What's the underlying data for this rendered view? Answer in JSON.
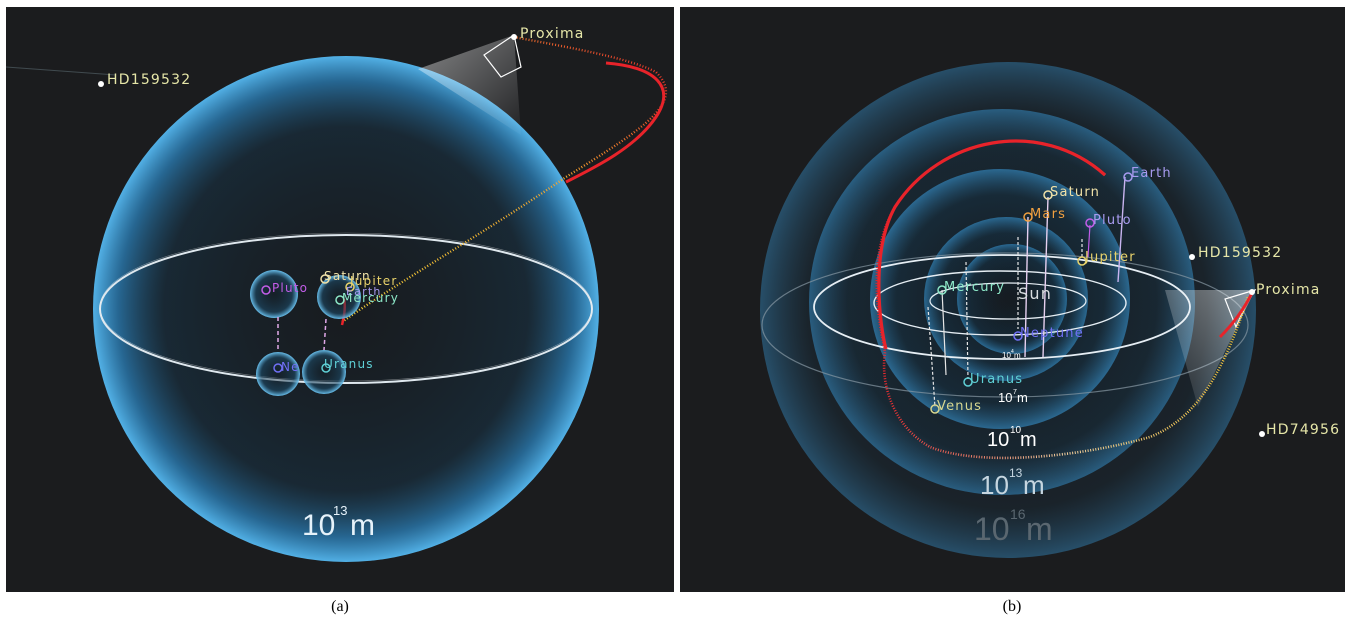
{
  "captions": {
    "a": "(a)",
    "b": "(b)"
  },
  "panel_a": {
    "star_1": "HD159532",
    "star_2": "Proxima",
    "planets": {
      "pluto": "Pluto",
      "saturn": "Saturn",
      "jupiter": "Jupiter",
      "earth": "Earth",
      "mercury": "Mercury",
      "neptune": "Ne",
      "uranus": "Uranus"
    },
    "scale": {
      "base": "10",
      "exp": "13",
      "unit": "m"
    }
  },
  "panel_b": {
    "stars": {
      "hd159532": "HD159532",
      "proxima": "Proxima",
      "hd74956": "HD74956"
    },
    "planets": {
      "earth": "Earth",
      "saturn": "Saturn",
      "mars": "Mars",
      "pluto": "Pluto",
      "jupiter": "Jupiter",
      "mercury": "Mercury",
      "sun": "Sun",
      "neptune": "Neptune",
      "uranus": "Uranus",
      "venus": "Venus"
    },
    "scales": {
      "s4": {
        "base": "10",
        "exp": "4",
        "unit": "m"
      },
      "s7": {
        "base": "10",
        "exp": "7",
        "unit": "m"
      },
      "s10": {
        "base": "10",
        "exp": "10",
        "unit": "m"
      },
      "s13": {
        "base": "10",
        "exp": "13",
        "unit": "m"
      },
      "s16": {
        "base": "10",
        "exp": "16",
        "unit": "m"
      }
    }
  },
  "colors": {
    "background": "#1b1c1e",
    "sphere_edge": "#3a9fe0",
    "trajectory_red": "#e8232a",
    "trajectory_yellow": "#f2c230",
    "star_label": "#e6e6a8",
    "pluto": "#c25de8",
    "saturn": "#f0e2a8",
    "jupiter": "#e9d36b",
    "earth": "#a89bf0",
    "mercury": "#8de8c8",
    "neptune": "#7070f5",
    "uranus": "#5fd0d6",
    "mars": "#f0a040",
    "venus": "#d8d890"
  }
}
